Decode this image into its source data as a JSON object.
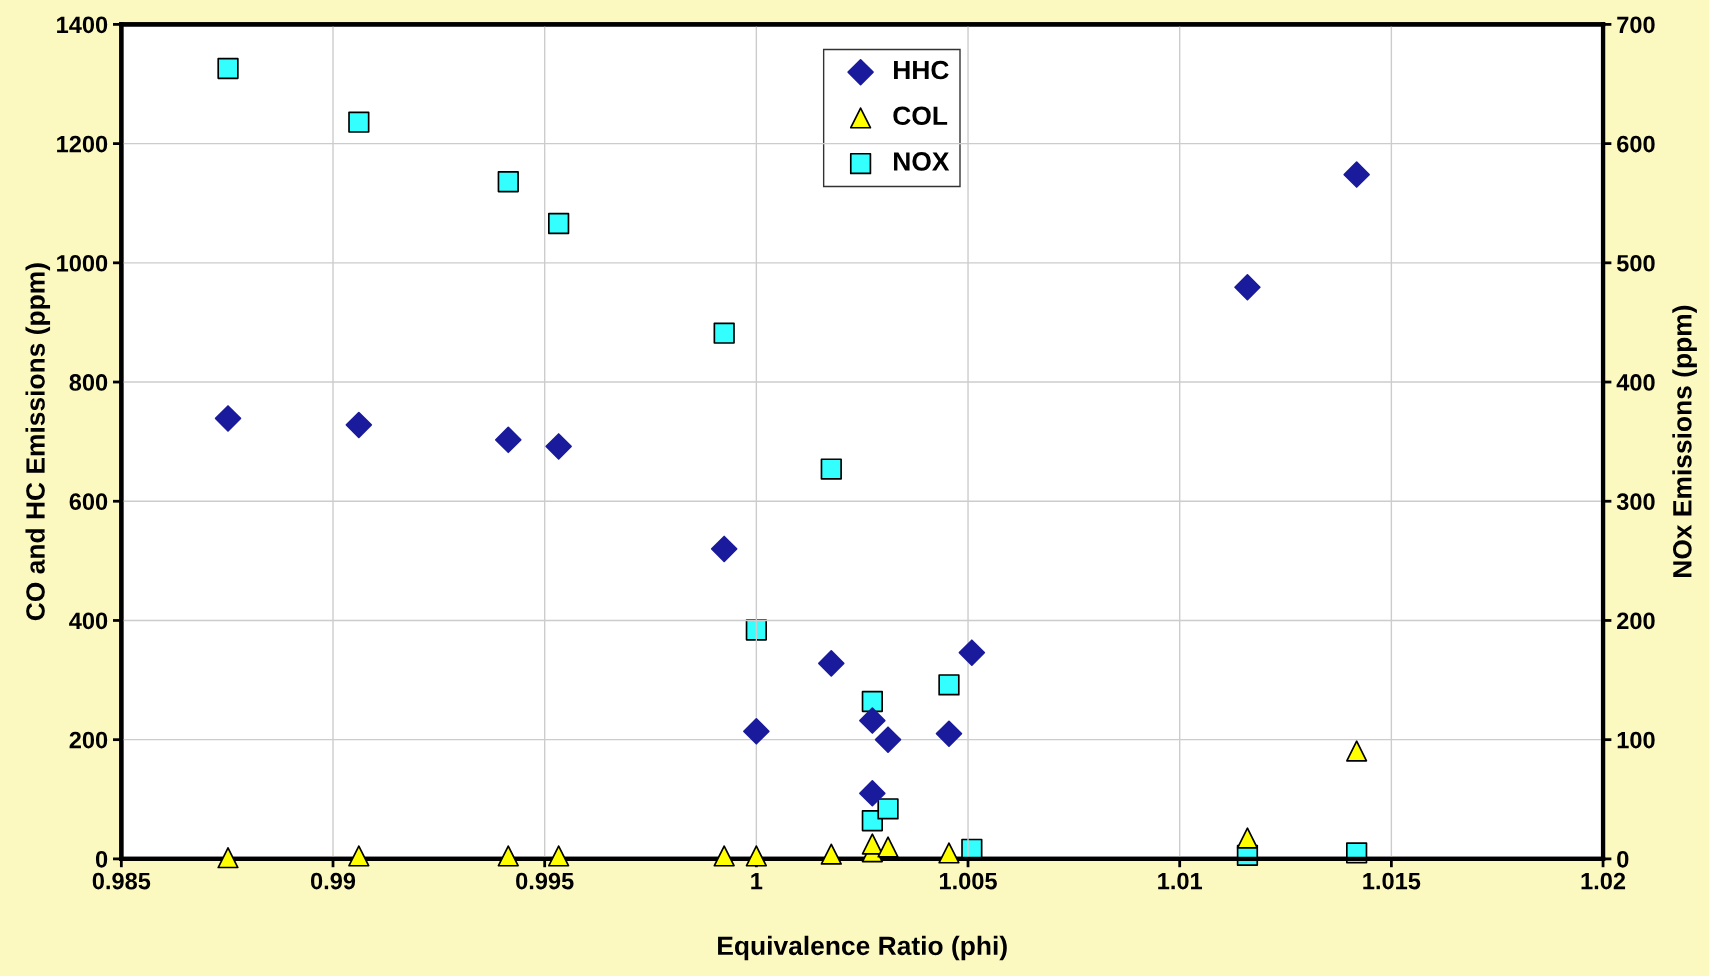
{
  "chart_data": {
    "type": "scatter",
    "xlabel": "Equivalence Ratio (phi)",
    "ylabel": "CO and HC Emissions (ppm)",
    "y2label": "NOx Emissions (ppm)",
    "xlim": [
      0.985,
      1.02
    ],
    "xticks": [
      0.985,
      0.99,
      0.995,
      1,
      1.005,
      1.01,
      1.015,
      1.02
    ],
    "ylim": [
      0,
      1400
    ],
    "yticks": [
      0,
      200,
      400,
      600,
      800,
      1000,
      1200,
      1400
    ],
    "y2lim": [
      0,
      700
    ],
    "y2ticks": [
      0,
      100,
      200,
      300,
      400,
      500,
      600,
      700
    ],
    "grid": true,
    "legend": "top",
    "series": [
      {
        "name": "HHC",
        "color": "#1a1a9c",
        "marker": "diamond",
        "x": [
          0.98752,
          0.99061,
          0.99414,
          0.99533,
          0.99924,
          1.0,
          1.00177,
          1.00274,
          1.00274,
          1.00311,
          1.00455,
          1.00509,
          1.0116,
          1.01418
        ],
        "values": [
          739,
          728,
          703,
          692,
          520,
          214,
          328,
          232,
          110,
          200,
          210,
          346,
          959,
          1148
        ]
      },
      {
        "name": "COL",
        "color": "#ffff00",
        "marker": "triangle",
        "x": [
          0.98752,
          0.99061,
          0.99414,
          0.99533,
          0.99924,
          1.0,
          1.00177,
          1.00274,
          1.00274,
          1.00311,
          1.00455,
          1.0116,
          1.01418
        ],
        "values": [
          2,
          5,
          5,
          5,
          5,
          5,
          8,
          12,
          25,
          20,
          10,
          35,
          181
        ]
      },
      {
        "name": "NOX",
        "color": "#33ffff",
        "marker": "square",
        "axis": "y2",
        "x": [
          0.98752,
          0.99061,
          0.99414,
          0.99533,
          0.99924,
          1.0,
          1.00177,
          1.00274,
          1.00274,
          1.00311,
          1.00455,
          1.00509,
          1.0116,
          1.01418
        ],
        "values": [
          663,
          618,
          568,
          533,
          441,
          192,
          327,
          132,
          32,
          42,
          146,
          8,
          3,
          5
        ]
      }
    ]
  }
}
